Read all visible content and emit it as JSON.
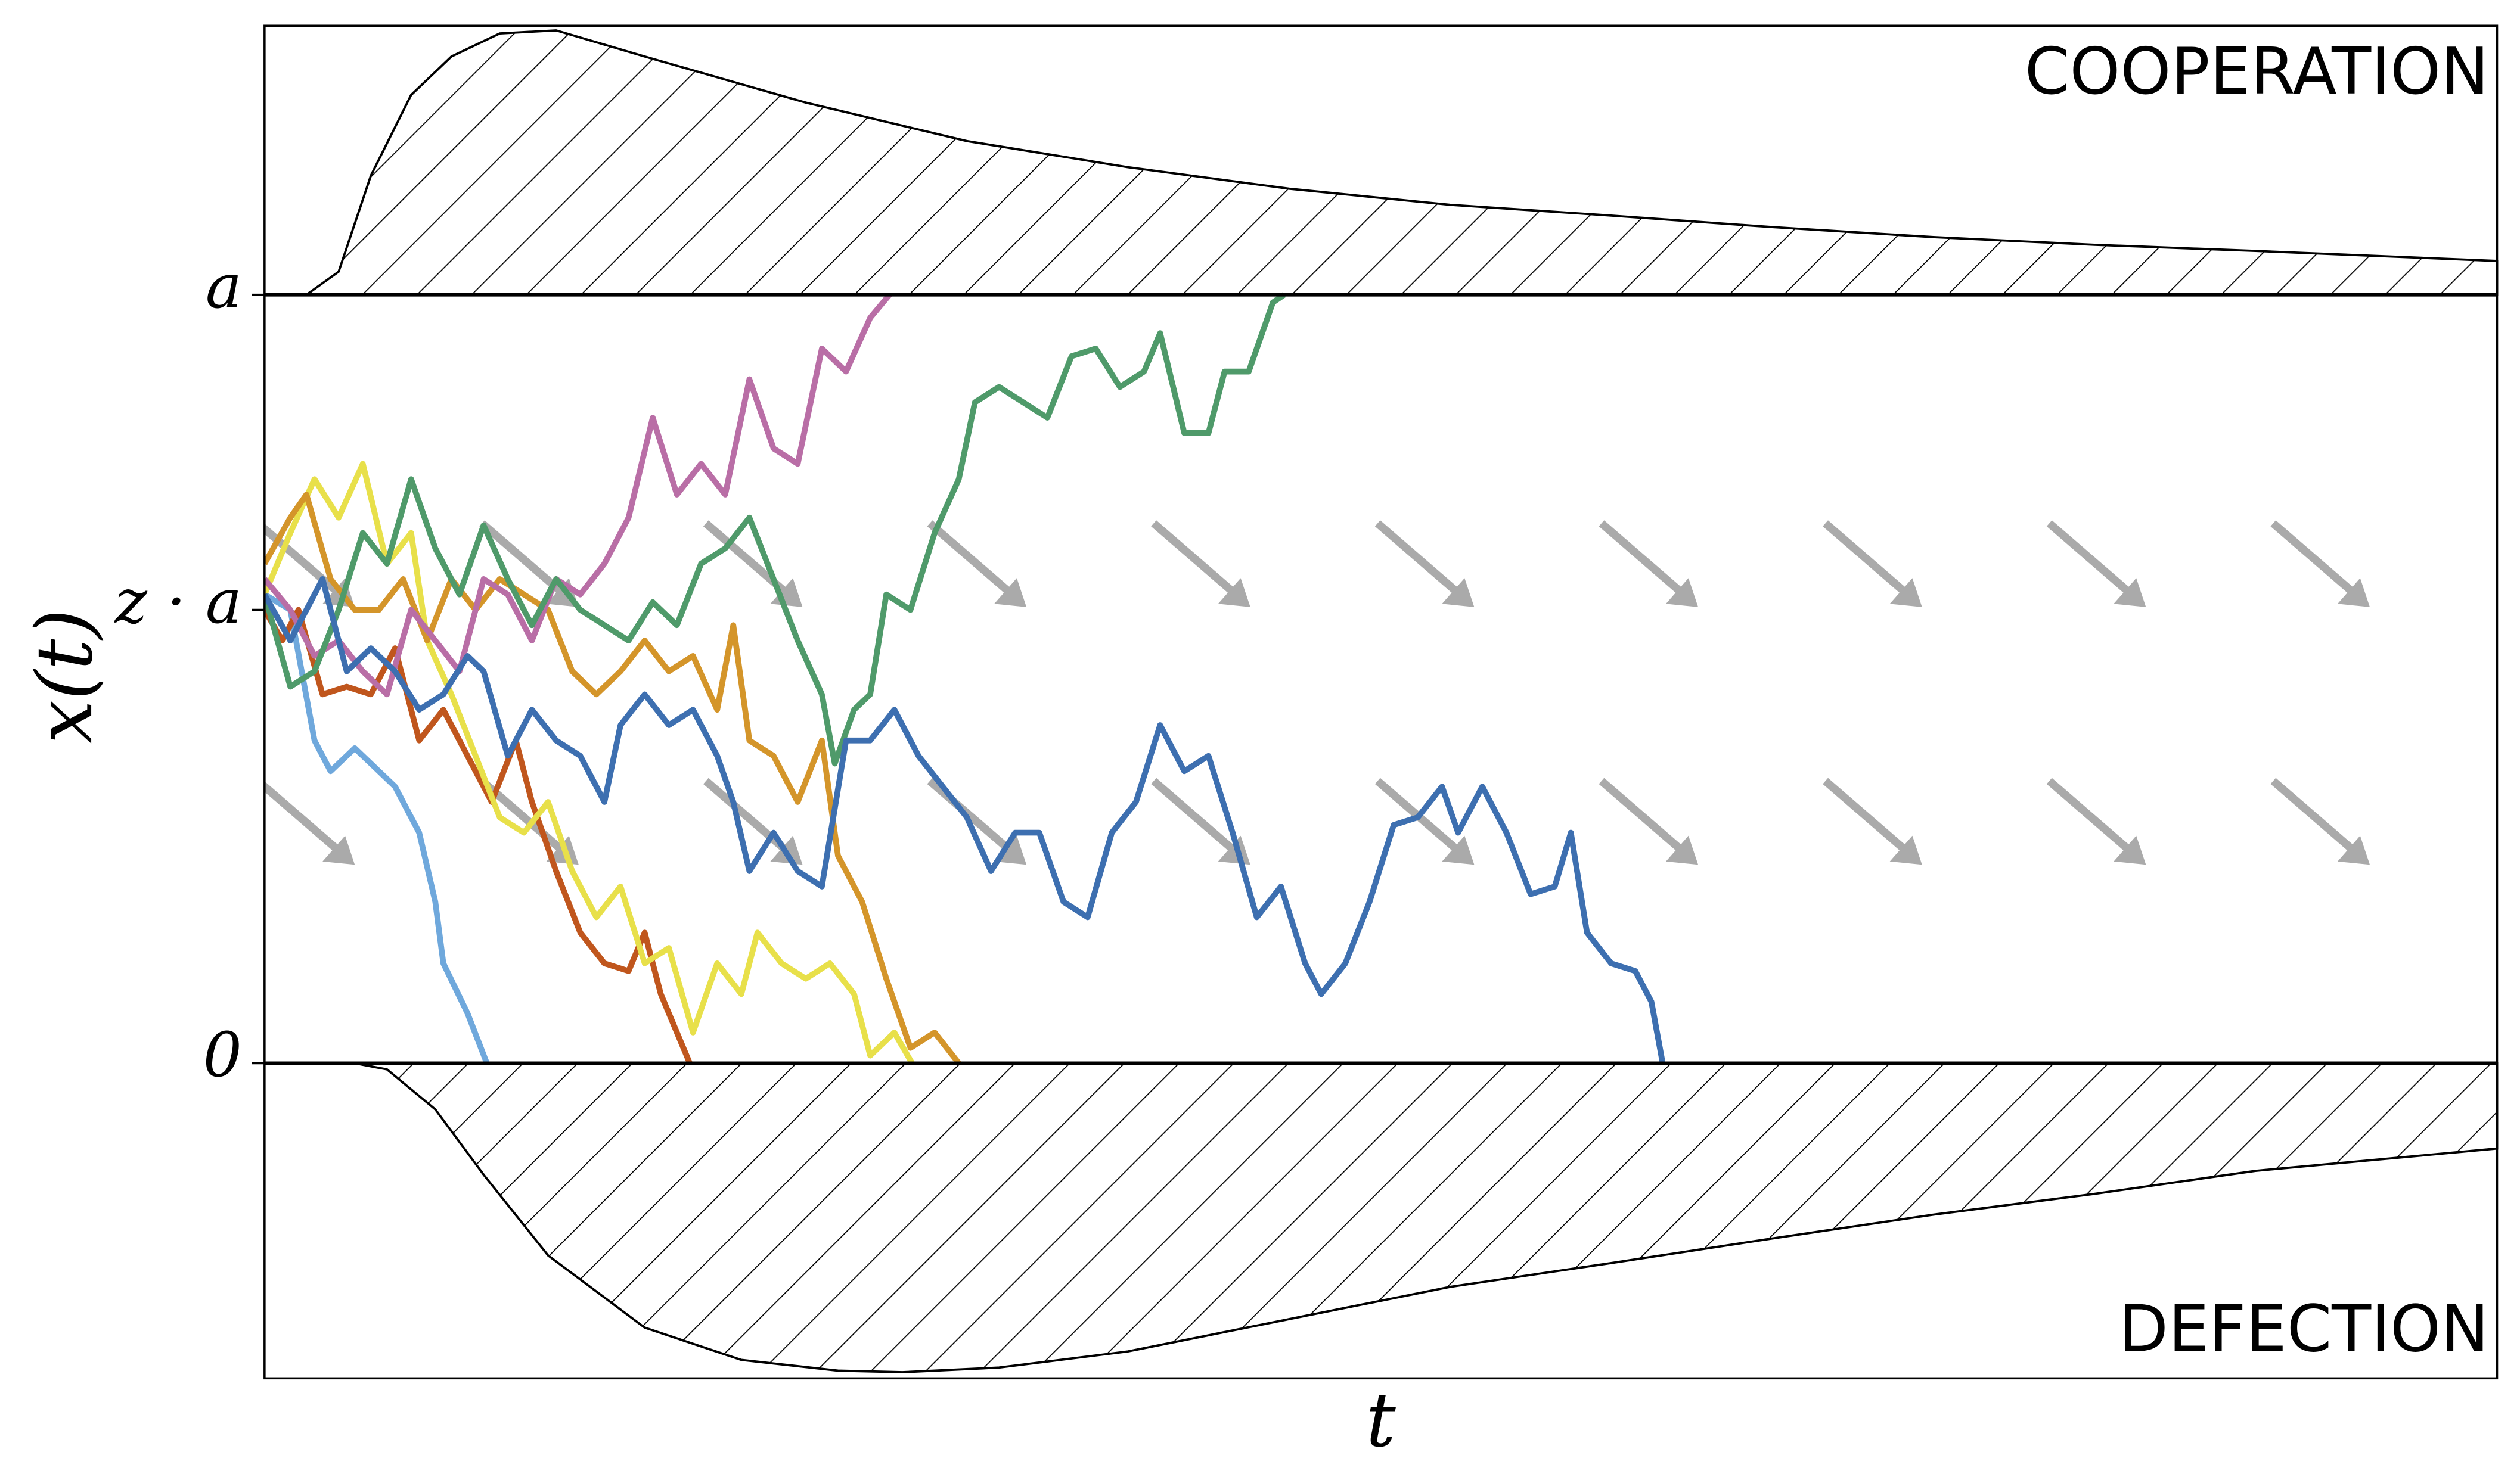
{
  "chart_data": {
    "type": "line",
    "xlabel": "t",
    "ylabel": "x(t)",
    "annotations": [
      "COOPERATION",
      "DEFECTION"
    ],
    "xlim": [
      0,
      1386
    ],
    "ylim": [
      -0.41,
      1.35
    ],
    "yticks": [
      0,
      {
        "value": 0.59,
        "label": "z · a"
      },
      {
        "value": 1,
        "label": "a"
      }
    ],
    "areas": [
      {
        "x": [
          26,
          46,
          66,
          91,
          116,
          146,
          181,
          236,
          336,
          436,
          536,
          636,
          736,
          836,
          936,
          1036,
          1136,
          1236,
          1386
        ],
        "values": [
          1,
          1.03,
          1.155,
          1.26,
          1.31,
          1.34,
          1.344,
          1.31,
          1.25,
          1.2,
          1.166,
          1.138,
          1.117,
          1.103,
          1.088,
          1.075,
          1.065,
          1.057,
          1.044
        ]
      },
      {
        "x": [
          56,
          76,
          106,
          136,
          176,
          236,
          296,
          356,
          396,
          456,
          536,
          636,
          736,
          836,
          936,
          1036,
          1136,
          1236,
          1386
        ],
        "values": [
          0,
          -0.008,
          -0.06,
          -0.145,
          -0.25,
          -0.344,
          -0.386,
          -0.4,
          -0.402,
          -0.396,
          -0.375,
          -0.333,
          -0.291,
          -0.26,
          -0.228,
          -0.197,
          -0.17,
          -0.14,
          -0.111
        ]
      }
    ],
    "series": [
      {
        "color": "#6fa8dc",
        "x": [
          0,
          16,
          31,
          41,
          56,
          71,
          81,
          96,
          106,
          111,
          126,
          138
        ],
        "values": [
          0.61,
          0.59,
          0.42,
          0.38,
          0.41,
          0.38,
          0.36,
          0.3,
          0.21,
          0.13,
          0.065,
          0
        ]
      },
      {
        "color": "#c0561d",
        "x": [
          0,
          11,
          21,
          36,
          51,
          66,
          81,
          96,
          111,
          126,
          141,
          156,
          166,
          181,
          196,
          211,
          226,
          236,
          246,
          264
        ],
        "values": [
          0.59,
          0.55,
          0.59,
          0.48,
          0.49,
          0.48,
          0.54,
          0.42,
          0.46,
          0.4,
          0.34,
          0.42,
          0.34,
          0.25,
          0.17,
          0.13,
          0.12,
          0.17,
          0.09,
          0
        ]
      },
      {
        "color": "#e8e04a",
        "x": [
          0,
          16,
          31,
          46,
          61,
          76,
          91,
          101,
          116,
          131,
          146,
          161,
          176,
          191,
          206,
          221,
          236,
          251,
          266,
          281,
          296,
          306,
          321,
          336,
          351,
          366,
          376,
          391,
          402
        ],
        "values": [
          0.61,
          0.69,
          0.76,
          0.71,
          0.78,
          0.65,
          0.69,
          0.55,
          0.48,
          0.4,
          0.32,
          0.3,
          0.34,
          0.25,
          0.19,
          0.23,
          0.13,
          0.15,
          0.04,
          0.13,
          0.09,
          0.17,
          0.13,
          0.11,
          0.13,
          0.09,
          0.01,
          0.04,
          0
        ]
      },
      {
        "color": "#d4952a",
        "x": [
          0,
          16,
          26,
          41,
          56,
          71,
          86,
          101,
          116,
          131,
          146,
          161,
          176,
          191,
          206,
          221,
          236,
          251,
          266,
          281,
          291,
          301,
          316,
          331,
          346,
          356,
          371,
          386,
          401,
          416,
          431
        ],
        "values": [
          0.65,
          0.71,
          0.74,
          0.63,
          0.59,
          0.59,
          0.63,
          0.55,
          0.63,
          0.59,
          0.63,
          0.61,
          0.59,
          0.51,
          0.48,
          0.51,
          0.55,
          0.51,
          0.53,
          0.46,
          0.57,
          0.42,
          0.4,
          0.34,
          0.42,
          0.27,
          0.21,
          0.11,
          0.02,
          0.04,
          0
        ]
      },
      {
        "color": "#b96ea6",
        "x": [
          0,
          16,
          31,
          46,
          61,
          76,
          91,
          106,
          121,
          136,
          151,
          166,
          181,
          196,
          211,
          226,
          241,
          256,
          271,
          286,
          301,
          316,
          331,
          346,
          361,
          376,
          388
        ],
        "values": [
          0.63,
          0.59,
          0.53,
          0.55,
          0.51,
          0.48,
          0.59,
          0.55,
          0.51,
          0.63,
          0.61,
          0.55,
          0.63,
          0.61,
          0.65,
          0.71,
          0.84,
          0.74,
          0.78,
          0.74,
          0.89,
          0.8,
          0.78,
          0.93,
          0.9,
          0.97,
          1
        ]
      },
      {
        "color": "#4f9a6a",
        "x": [
          0,
          16,
          31,
          46,
          61,
          76,
          91,
          106,
          121,
          136,
          151,
          166,
          181,
          196,
          211,
          226,
          241,
          256,
          271,
          286,
          301,
          316,
          331,
          346,
          354,
          366,
          376,
          386,
          401,
          416,
          431,
          441,
          456,
          471,
          486,
          501,
          516,
          531,
          546,
          556,
          571,
          586,
          596,
          611,
          626,
          633
        ],
        "values": [
          0.61,
          0.49,
          0.51,
          0.59,
          0.69,
          0.65,
          0.76,
          0.67,
          0.61,
          0.7,
          0.63,
          0.57,
          0.63,
          0.59,
          0.57,
          0.55,
          0.6,
          0.57,
          0.65,
          0.67,
          0.71,
          0.63,
          0.55,
          0.48,
          0.39,
          0.46,
          0.48,
          0.61,
          0.59,
          0.69,
          0.76,
          0.86,
          0.88,
          0.86,
          0.84,
          0.92,
          0.93,
          0.88,
          0.9,
          0.95,
          0.82,
          0.82,
          0.9,
          0.9,
          0.99,
          1
        ]
      },
      {
        "color": "#3d6fb0",
        "x": [
          0,
          16,
          36,
          51,
          66,
          81,
          96,
          111,
          126,
          136,
          151,
          166,
          181,
          196,
          211,
          221,
          236,
          251,
          266,
          281,
          291,
          301,
          316,
          331,
          346,
          361,
          376,
          391,
          406,
          421,
          436,
          451,
          466,
          481,
          496,
          511,
          526,
          541,
          556,
          571,
          586,
          601,
          616,
          631,
          646,
          656,
          671,
          686,
          701,
          716,
          731,
          741,
          756,
          771,
          786,
          801,
          811,
          821,
          836,
          851,
          861,
          868
        ],
        "values": [
          0.61,
          0.55,
          0.63,
          0.51,
          0.54,
          0.51,
          0.46,
          0.48,
          0.53,
          0.51,
          0.4,
          0.46,
          0.42,
          0.4,
          0.34,
          0.44,
          0.48,
          0.44,
          0.46,
          0.4,
          0.34,
          0.25,
          0.3,
          0.25,
          0.23,
          0.42,
          0.42,
          0.46,
          0.4,
          0.36,
          0.32,
          0.25,
          0.3,
          0.3,
          0.21,
          0.19,
          0.3,
          0.34,
          0.44,
          0.38,
          0.4,
          0.3,
          0.19,
          0.23,
          0.13,
          0.09,
          0.13,
          0.21,
          0.31,
          0.32,
          0.36,
          0.3,
          0.36,
          0.3,
          0.22,
          0.23,
          0.3,
          0.17,
          0.13,
          0.12,
          0.08,
          0
        ]
      }
    ]
  }
}
